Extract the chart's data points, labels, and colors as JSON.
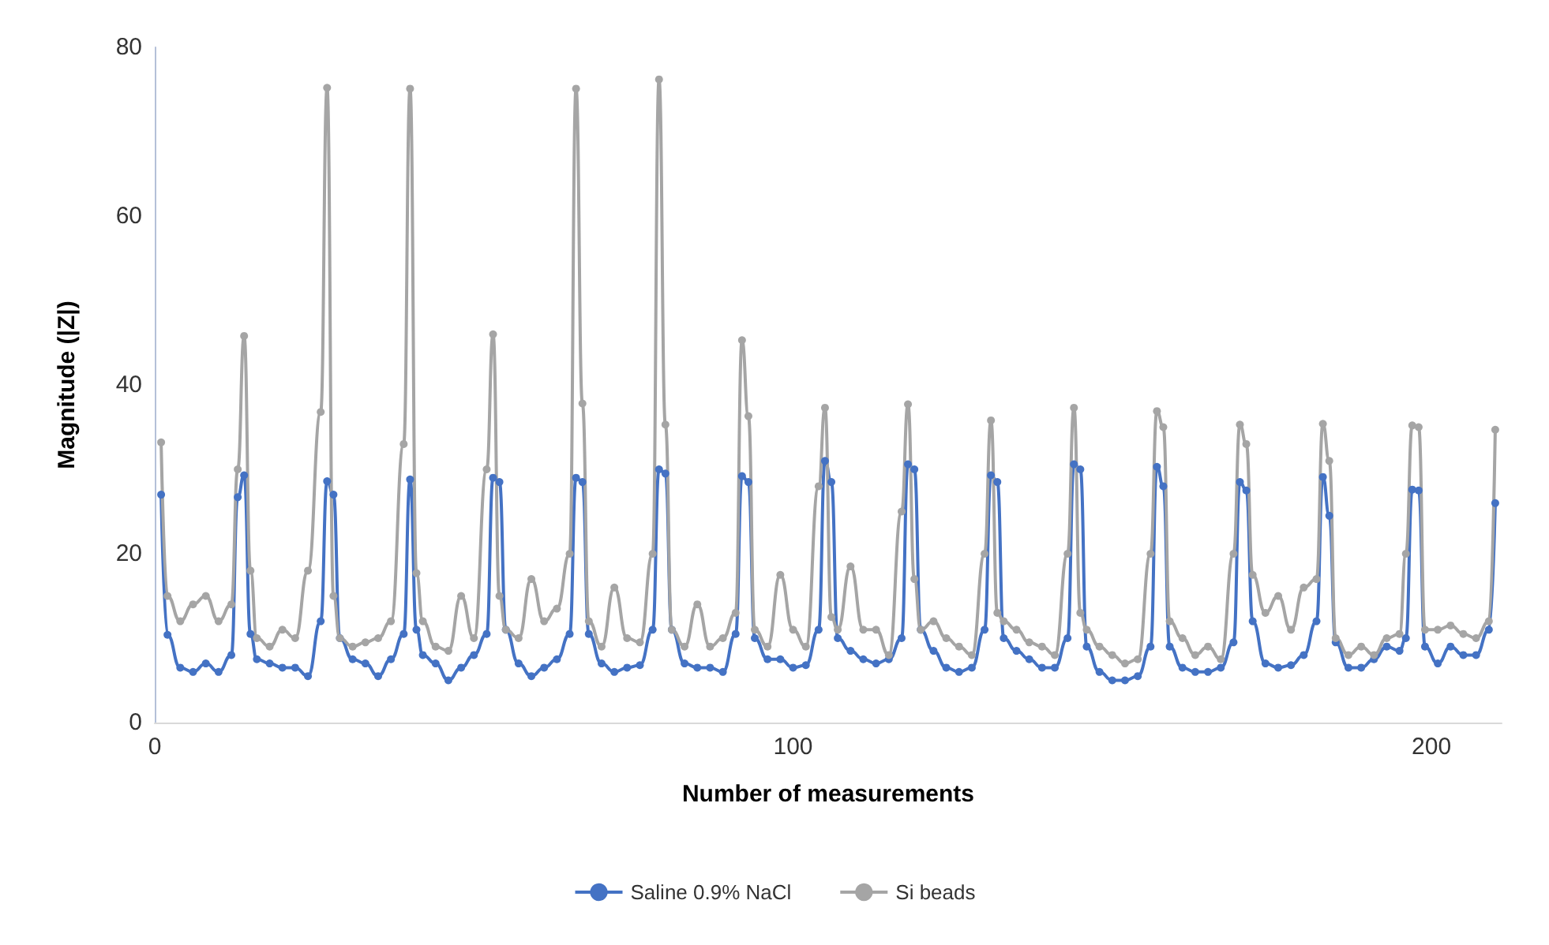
{
  "chart_data": {
    "type": "line",
    "xlabel": "Number of measurements",
    "ylabel": "Magnitude (|Z|)",
    "x": [
      1,
      2,
      4,
      6,
      8,
      10,
      12,
      13,
      14,
      15,
      16,
      18,
      20,
      22,
      24,
      26,
      27,
      28,
      29,
      31,
      33,
      35,
      37,
      39,
      40,
      41,
      42,
      44,
      46,
      48,
      50,
      52,
      53,
      54,
      55,
      57,
      59,
      61,
      63,
      65,
      66,
      67,
      68,
      70,
      72,
      74,
      76,
      78,
      79,
      80,
      81,
      83,
      85,
      87,
      89,
      91,
      92,
      93,
      94,
      96,
      98,
      100,
      102,
      104,
      105,
      106,
      107,
      109,
      111,
      113,
      115,
      117,
      118,
      119,
      120,
      122,
      124,
      126,
      128,
      130,
      131,
      132,
      133,
      135,
      137,
      139,
      141,
      143,
      144,
      145,
      146,
      148,
      150,
      152,
      154,
      156,
      157,
      158,
      159,
      161,
      163,
      165,
      167,
      169,
      170,
      171,
      172,
      174,
      176,
      178,
      180,
      182,
      183,
      184,
      185,
      187,
      189,
      191,
      193,
      195,
      196,
      197,
      198,
      199,
      201,
      203,
      205,
      207,
      209,
      210
    ],
    "series": [
      {
        "name": "Saline 0.9% NaCl",
        "color": "#4472c4",
        "values": [
          27,
          10.4,
          6.5,
          6,
          7,
          6,
          8,
          26.7,
          29.3,
          10.5,
          7.5,
          7,
          6.5,
          6.5,
          5.5,
          12,
          28.6,
          27,
          10,
          7.5,
          7,
          5.5,
          7.5,
          10.5,
          28.8,
          11,
          8,
          7,
          5,
          6.5,
          8,
          10.5,
          29,
          28.5,
          11,
          7,
          5.5,
          6.5,
          7.5,
          10.5,
          29,
          28.5,
          10.5,
          7,
          6,
          6.5,
          6.8,
          11,
          30,
          29.5,
          11,
          7,
          6.5,
          6.5,
          6,
          10.5,
          29.2,
          28.5,
          10,
          7.5,
          7.5,
          6.5,
          6.8,
          11,
          31,
          28.5,
          10,
          8.5,
          7.5,
          7,
          7.5,
          10,
          30.6,
          30,
          11,
          8.5,
          6.5,
          6,
          6.5,
          11,
          29.3,
          28.5,
          10,
          8.5,
          7.5,
          6.5,
          6.5,
          10,
          30.6,
          30,
          9,
          6,
          5,
          5,
          5.5,
          9,
          30.3,
          28,
          9,
          6.5,
          6,
          6,
          6.5,
          9.5,
          28.5,
          27.5,
          12,
          7,
          6.5,
          6.8,
          8,
          12,
          29.1,
          24.5,
          9.5,
          6.5,
          6.5,
          7.5,
          9,
          8.5,
          10,
          27.6,
          27.5,
          9,
          7,
          9,
          8,
          8,
          11,
          26
        ]
      },
      {
        "name": "Si beads",
        "color": "#a5a5a5",
        "values": [
          33.2,
          15,
          12,
          14,
          15,
          12,
          14,
          30,
          45.8,
          18,
          10,
          9,
          11,
          10,
          18,
          36.8,
          75.2,
          15,
          10,
          9,
          9.5,
          10,
          12,
          33,
          75.1,
          17.7,
          12,
          9,
          8.5,
          15,
          10,
          30,
          46,
          15,
          11,
          10,
          17,
          12,
          13.5,
          20,
          75.1,
          37.8,
          12,
          9,
          16,
          10,
          9.5,
          20,
          76.2,
          35.3,
          11,
          9,
          14,
          9,
          10,
          13,
          45.3,
          36.3,
          11,
          9,
          17.5,
          11,
          9,
          28,
          37.3,
          12.5,
          11,
          18.5,
          11,
          11,
          8,
          25,
          37.7,
          17,
          11,
          12,
          10,
          9,
          8,
          20,
          35.8,
          13,
          12,
          11,
          9.5,
          9,
          8,
          20,
          37.3,
          13,
          11,
          9,
          8,
          7,
          7.5,
          20,
          36.9,
          35,
          12,
          10,
          8,
          9,
          7.5,
          20,
          35.3,
          33,
          17.5,
          13,
          15,
          11,
          16,
          17,
          35.4,
          31,
          10,
          8,
          9,
          8,
          10,
          10.5,
          20,
          35.2,
          35,
          11,
          11,
          11.5,
          10.5,
          10,
          12,
          34.7
        ]
      }
    ],
    "xlim": [
      0,
      211
    ],
    "xticks": [
      0,
      100,
      200
    ],
    "ylim": [
      0,
      80
    ],
    "yticks": [
      0,
      20,
      40,
      60,
      80
    ],
    "grid": false,
    "legend": "bottom",
    "marker": "circle",
    "line_style": "solid"
  }
}
